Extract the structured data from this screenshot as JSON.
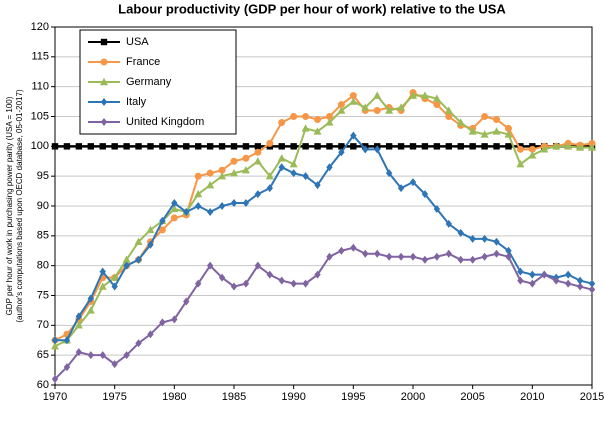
{
  "chart_data": {
    "type": "line",
    "title": "Labour productivity (GDP per hour of work) relative to the USA",
    "ylabel": [
      "GDP per hour of work in purchasing power parity (USA = 100)",
      "(author's computations based upon OECD database, 05-01-2017)"
    ],
    "x": [
      1970,
      1971,
      1972,
      1973,
      1974,
      1975,
      1976,
      1977,
      1978,
      1979,
      1980,
      1981,
      1982,
      1983,
      1984,
      1985,
      1986,
      1987,
      1988,
      1989,
      1990,
      1991,
      1992,
      1993,
      1994,
      1995,
      1996,
      1997,
      1998,
      1999,
      2000,
      2001,
      2002,
      2003,
      2004,
      2005,
      2006,
      2007,
      2008,
      2009,
      2010,
      2011,
      2012,
      2013,
      2014,
      2015
    ],
    "xlim": [
      1970,
      2015
    ],
    "xticks": [
      1970,
      1975,
      1980,
      1985,
      1990,
      1995,
      2000,
      2005,
      2010,
      2015
    ],
    "ylim": [
      60,
      120
    ],
    "yticks": [
      60,
      65,
      70,
      75,
      80,
      85,
      90,
      95,
      100,
      105,
      110,
      115,
      120
    ],
    "grid": true,
    "legend": "upper left",
    "series": [
      {
        "name": "USA",
        "color": "#000000",
        "marker": "square",
        "values": [
          100,
          100,
          100,
          100,
          100,
          100,
          100,
          100,
          100,
          100,
          100,
          100,
          100,
          100,
          100,
          100,
          100,
          100,
          100,
          100,
          100,
          100,
          100,
          100,
          100,
          100,
          100,
          100,
          100,
          100,
          100,
          100,
          100,
          100,
          100,
          100,
          100,
          100,
          100,
          100,
          100,
          100,
          100,
          100,
          100,
          100
        ]
      },
      {
        "name": "France",
        "color": "#f79646",
        "marker": "circle",
        "values": [
          67.5,
          68.5,
          71,
          74,
          78,
          78,
          80,
          81,
          84,
          86,
          88,
          88.5,
          95,
          95.5,
          96,
          97.5,
          98,
          99,
          100.5,
          104,
          105,
          105,
          104.5,
          105,
          107,
          108.5,
          106,
          106,
          106.5,
          106,
          109,
          108,
          107,
          105,
          103.5,
          103,
          105,
          104.5,
          103,
          99.5,
          99.5,
          100,
          100,
          100.5,
          100.2,
          100.5
        ]
      },
      {
        "name": "Germany",
        "color": "#9bbb59",
        "marker": "triangle",
        "values": [
          66.5,
          67.5,
          70,
          72.5,
          76.5,
          78,
          81,
          84,
          86,
          87.5,
          89.5,
          89,
          92,
          93.5,
          95,
          95.5,
          96,
          97.5,
          95,
          98,
          97,
          103,
          102.5,
          104,
          106,
          107.5,
          106.5,
          108.5,
          106,
          106.5,
          108.5,
          108.5,
          108,
          106,
          104,
          102.5,
          102,
          102.5,
          102,
          97,
          98.5,
          99.5,
          100,
          100,
          99.8,
          99.8
        ]
      },
      {
        "name": "Italy",
        "color": "#2e75b6",
        "marker": "diamond",
        "values": [
          67.5,
          67.5,
          71.5,
          74.5,
          79,
          76.5,
          80,
          81,
          83.5,
          87.5,
          90.5,
          89,
          90,
          89,
          90,
          90.5,
          90.5,
          92,
          93,
          96.5,
          95.5,
          95,
          93.5,
          96.5,
          99,
          101.8,
          99.5,
          99.5,
          95.5,
          93,
          94,
          92,
          89.5,
          87,
          85.5,
          84.5,
          84.5,
          84,
          82.5,
          79,
          78.5,
          78.5,
          78,
          78.5,
          77.5,
          77
        ]
      },
      {
        "name": "United Kingdom",
        "color": "#8064a2",
        "marker": "diamond",
        "values": [
          61,
          63,
          65.5,
          65,
          65,
          63.5,
          65,
          67,
          68.5,
          70.5,
          71,
          74,
          77,
          80,
          78,
          76.5,
          77,
          80,
          78.5,
          77.5,
          77,
          77,
          78.5,
          81.5,
          82.5,
          83,
          82,
          82,
          81.5,
          81.5,
          81.5,
          81,
          81.5,
          82,
          81,
          81,
          81.5,
          82,
          81.5,
          77.5,
          77,
          78.5,
          77.5,
          77,
          76.5,
          76
        ]
      }
    ]
  }
}
